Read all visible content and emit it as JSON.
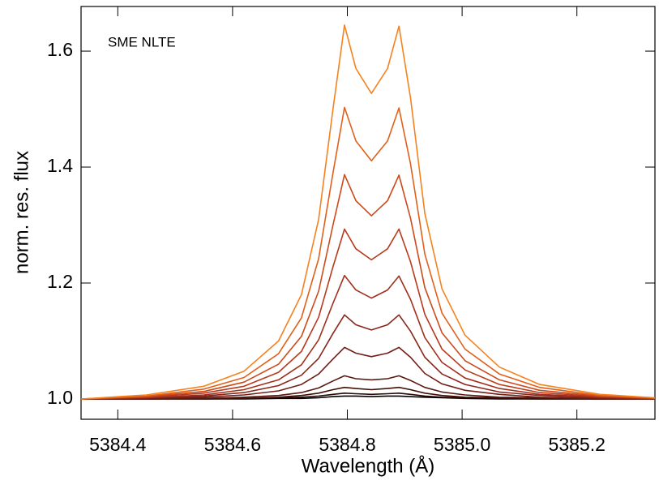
{
  "chart_data": {
    "type": "line",
    "annotation": "SME NLTE",
    "xlabel": "Wavelength (Å)",
    "ylabel": "norm. res. flux",
    "xlim": [
      5384.336,
      5385.336
    ],
    "ylim": [
      0.965,
      1.677
    ],
    "xticks": [
      5384.4,
      5384.6,
      5384.8,
      5385.0,
      5385.2
    ],
    "yticks": [
      {
        "value": 1.0,
        "label": "1.0"
      },
      1.2,
      1.4,
      1.6
    ],
    "x": [
      5384.336,
      5384.45,
      5384.55,
      5384.62,
      5384.68,
      5384.72,
      5384.75,
      5384.775,
      5384.795,
      5384.815,
      5384.842,
      5384.87,
      5384.89,
      5384.91,
      5384.935,
      5384.965,
      5385.005,
      5385.065,
      5385.135,
      5385.24,
      5385.336
    ],
    "series": [
      {
        "color": "#000000",
        "values": [
          1.0,
          1.0,
          1.0,
          1.0,
          1.001,
          1.001,
          1.002,
          1.004,
          1.005,
          1.005,
          1.004,
          1.005,
          1.005,
          1.004,
          1.003,
          1.002,
          1.001,
          1.0,
          1.0,
          1.0,
          1.0
        ]
      },
      {
        "color": "#280a05",
        "values": [
          1.0,
          1.0,
          1.0,
          1.001,
          1.002,
          1.003,
          1.005,
          1.008,
          1.01,
          1.009,
          1.008,
          1.009,
          1.01,
          1.008,
          1.005,
          1.003,
          1.002,
          1.001,
          1.0,
          1.0,
          1.0
        ]
      },
      {
        "color": "#401008",
        "values": [
          1.0,
          1.0,
          1.001,
          1.001,
          1.003,
          1.006,
          1.01,
          1.016,
          1.02,
          1.018,
          1.016,
          1.018,
          1.02,
          1.016,
          1.01,
          1.006,
          1.003,
          1.002,
          1.001,
          1.0,
          1.0
        ]
      },
      {
        "color": "#581810",
        "values": [
          1.0,
          1.0,
          1.001,
          1.003,
          1.006,
          1.011,
          1.019,
          1.031,
          1.04,
          1.035,
          1.033,
          1.035,
          1.04,
          1.032,
          1.02,
          1.012,
          1.007,
          1.003,
          1.002,
          1.0,
          1.0
        ]
      },
      {
        "color": "#701e16",
        "values": [
          1.0,
          1.001,
          1.003,
          1.007,
          1.014,
          1.025,
          1.043,
          1.069,
          1.089,
          1.079,
          1.073,
          1.079,
          1.089,
          1.072,
          1.044,
          1.026,
          1.015,
          1.008,
          1.003,
          1.001,
          1.0
        ]
      },
      {
        "color": "#88261a",
        "values": [
          1.0,
          1.002,
          1.005,
          1.011,
          1.023,
          1.041,
          1.07,
          1.113,
          1.145,
          1.128,
          1.119,
          1.128,
          1.145,
          1.117,
          1.072,
          1.043,
          1.025,
          1.012,
          1.006,
          1.002,
          1.0
        ]
      },
      {
        "color": "#a0301c",
        "values": [
          1.0,
          1.002,
          1.007,
          1.016,
          1.033,
          1.059,
          1.102,
          1.165,
          1.213,
          1.188,
          1.174,
          1.188,
          1.212,
          1.172,
          1.106,
          1.063,
          1.036,
          1.018,
          1.008,
          1.003,
          1.001
        ]
      },
      {
        "color": "#b83a1c",
        "values": [
          1.0,
          1.003,
          1.01,
          1.022,
          1.046,
          1.082,
          1.141,
          1.228,
          1.293,
          1.259,
          1.24,
          1.259,
          1.293,
          1.237,
          1.146,
          1.086,
          1.05,
          1.025,
          1.011,
          1.004,
          1.001
        ]
      },
      {
        "color": "#cc4a1a",
        "values": [
          1.0,
          1.004,
          1.013,
          1.029,
          1.06,
          1.108,
          1.186,
          1.3,
          1.387,
          1.342,
          1.316,
          1.342,
          1.386,
          1.312,
          1.192,
          1.114,
          1.066,
          1.033,
          1.015,
          1.005,
          1.001
        ]
      },
      {
        "color": "#e0601a",
        "values": [
          1.0,
          1.005,
          1.017,
          1.037,
          1.078,
          1.14,
          1.242,
          1.39,
          1.503,
          1.445,
          1.411,
          1.445,
          1.502,
          1.406,
          1.25,
          1.148,
          1.086,
          1.043,
          1.02,
          1.006,
          1.002
        ]
      },
      {
        "color": "#f5821e",
        "values": [
          1.0,
          1.007,
          1.022,
          1.048,
          1.1,
          1.18,
          1.31,
          1.5,
          1.645,
          1.57,
          1.527,
          1.57,
          1.643,
          1.52,
          1.32,
          1.19,
          1.11,
          1.055,
          1.025,
          1.008,
          1.002
        ]
      }
    ]
  }
}
